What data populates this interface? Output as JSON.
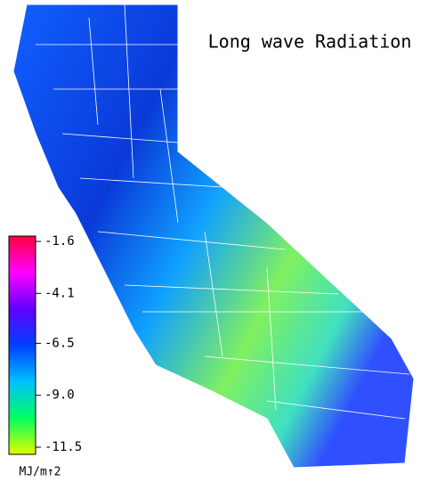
{
  "title": "Long wave Radiation",
  "colorbar": {
    "ticks": [
      -1.6,
      -4.1,
      -6.5,
      {
        "value": -9,
        "label": "-9.0"
      },
      -11.5
    ],
    "colors": [
      "#ff0040",
      "#ff00ff",
      "#6000ff",
      "#0040ff",
      "#00c0ff",
      "#00ff60",
      "#e0ff00"
    ],
    "unit": "MJ/m↑2"
  }
}
